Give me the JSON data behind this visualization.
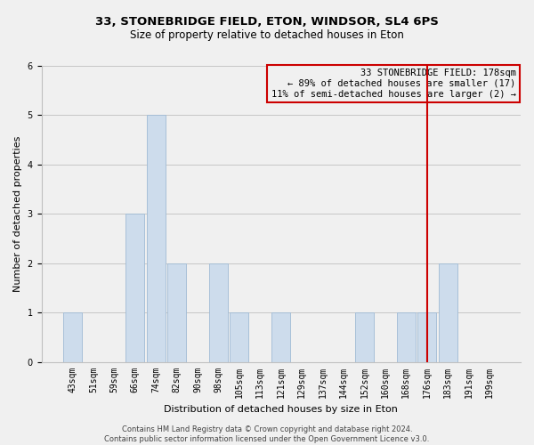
{
  "title": "33, STONEBRIDGE FIELD, ETON, WINDSOR, SL4 6PS",
  "subtitle": "Size of property relative to detached houses in Eton",
  "xlabel": "Distribution of detached houses by size in Eton",
  "ylabel": "Number of detached properties",
  "bar_labels": [
    "43sqm",
    "51sqm",
    "59sqm",
    "66sqm",
    "74sqm",
    "82sqm",
    "90sqm",
    "98sqm",
    "105sqm",
    "113sqm",
    "121sqm",
    "129sqm",
    "137sqm",
    "144sqm",
    "152sqm",
    "160sqm",
    "168sqm",
    "176sqm",
    "183sqm",
    "191sqm",
    "199sqm"
  ],
  "bar_values": [
    1,
    0,
    0,
    3,
    5,
    2,
    0,
    2,
    1,
    0,
    1,
    0,
    0,
    0,
    1,
    0,
    1,
    1,
    2,
    0,
    0
  ],
  "bar_color": "#cddcec",
  "bar_edge_color": "#9fbbd4",
  "ylim": [
    0,
    6
  ],
  "yticks": [
    0,
    1,
    2,
    3,
    4,
    5,
    6
  ],
  "property_line_idx": 17,
  "property_line_color": "#cc0000",
  "annotation_title": "33 STONEBRIDGE FIELD: 178sqm",
  "annotation_line1": "← 89% of detached houses are smaller (17)",
  "annotation_line2": "11% of semi-detached houses are larger (2) →",
  "annotation_box_color": "#cc0000",
  "footnote1": "Contains HM Land Registry data © Crown copyright and database right 2024.",
  "footnote2": "Contains public sector information licensed under the Open Government Licence v3.0.",
  "background_color": "#f0f0f0",
  "title_fontsize": 9.5,
  "subtitle_fontsize": 8.5,
  "axis_label_fontsize": 8,
  "tick_fontsize": 7,
  "annotation_fontsize": 7.5,
  "footnote_fontsize": 6
}
